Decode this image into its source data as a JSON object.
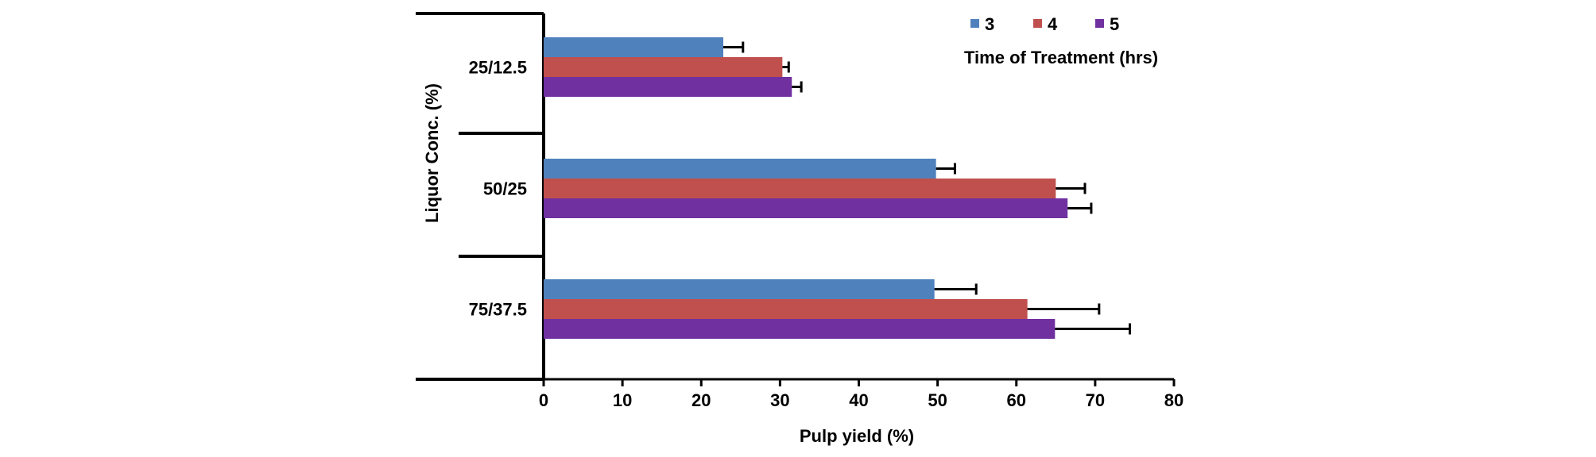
{
  "chart_data": {
    "type": "bar",
    "orientation": "horizontal",
    "categories": [
      "25/12.5",
      "50/25",
      "75/37.5"
    ],
    "series": [
      {
        "name": "3",
        "color": "#4F81BD",
        "values": [
          22.8,
          49.8,
          49.6
        ],
        "errors": [
          2.5,
          2.4,
          5.3
        ]
      },
      {
        "name": "4",
        "color": "#C0504D",
        "values": [
          30.3,
          65.0,
          61.4
        ],
        "errors": [
          0.8,
          3.7,
          9.1
        ]
      },
      {
        "name": "5",
        "color": "#7030A0",
        "values": [
          31.5,
          66.5,
          64.9
        ],
        "errors": [
          1.2,
          3.0,
          9.5
        ]
      }
    ],
    "xlabel": "Pulp yield (%)",
    "ylabel": "Liquor Conc. (%)",
    "xlim": [
      0,
      80
    ],
    "xticks": [
      "0",
      "10",
      "20",
      "30",
      "40",
      "50",
      "60",
      "70",
      "80"
    ],
    "legend_title": "Time of Treatment (hrs)",
    "legend_position": "top-right",
    "error_bars": true,
    "grid": false
  }
}
